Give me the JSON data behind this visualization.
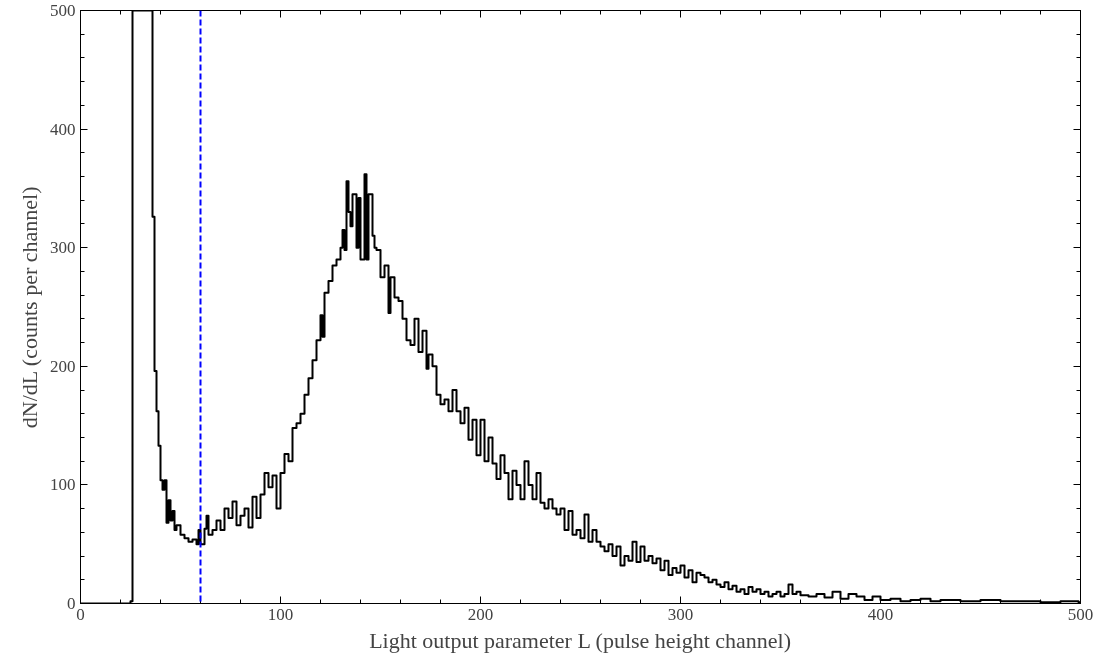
{
  "chart_data": {
    "type": "step",
    "xlabel": "Light output parameter L (pulse height channel)",
    "ylabel": "dN/dL (counts per channel)",
    "series": [
      {
        "color": "#000000",
        "x": [
          0,
          25,
          26,
          36,
          37,
          38,
          39,
          40,
          41,
          42,
          43,
          44,
          45,
          46,
          47,
          48,
          50,
          52,
          54,
          56,
          58,
          59,
          60,
          62,
          63,
          64,
          66,
          68,
          70,
          72,
          74,
          76,
          78,
          80,
          82,
          84,
          86,
          88,
          90,
          92,
          94,
          96,
          98,
          100,
          102,
          104,
          106,
          108,
          110,
          112,
          114,
          116,
          118,
          120,
          121,
          122,
          124,
          126,
          128,
          130,
          131,
          132,
          133,
          134,
          135,
          136,
          138,
          139,
          140,
          142,
          143,
          144,
          146,
          147,
          148,
          150,
          152,
          154,
          155,
          157,
          159,
          161,
          163,
          165,
          167,
          169,
          171,
          173,
          174,
          176,
          178,
          180,
          182,
          184,
          186,
          188,
          190,
          192,
          194,
          196,
          198,
          200,
          202,
          204,
          206,
          208,
          210,
          212,
          214,
          216,
          218,
          220,
          222,
          224,
          226,
          228,
          230,
          232,
          234,
          236,
          238,
          240,
          242,
          244,
          246,
          248,
          250,
          252,
          254,
          256,
          258,
          260,
          262,
          264,
          266,
          268,
          270,
          272,
          274,
          276,
          278,
          280,
          282,
          284,
          286,
          288,
          290,
          292,
          294,
          296,
          298,
          300,
          302,
          304,
          306,
          308,
          310,
          312,
          314,
          316,
          318,
          320,
          322,
          324,
          326,
          328,
          330,
          332,
          334,
          336,
          338,
          340,
          342,
          344,
          346,
          348,
          350,
          352,
          354,
          356,
          358,
          360,
          364,
          368,
          372,
          376,
          380,
          384,
          388,
          392,
          396,
          400,
          405,
          410,
          415,
          420,
          425,
          430,
          440,
          450,
          460,
          470,
          480,
          490,
          499,
          500
        ],
        "values": [
          0,
          2,
          500,
          326,
          196,
          162,
          133,
          104,
          96,
          104,
          68,
          87,
          70,
          78,
          62,
          66,
          58,
          55,
          52,
          54,
          50,
          62,
          50,
          63,
          74,
          58,
          62,
          70,
          62,
          80,
          72,
          86,
          66,
          74,
          80,
          64,
          90,
          72,
          92,
          110,
          98,
          108,
          80,
          110,
          126,
          120,
          148,
          152,
          160,
          176,
          190,
          205,
          222,
          243,
          225,
          262,
          272,
          285,
          290,
          300,
          315,
          298,
          356,
          330,
          318,
          345,
          300,
          342,
          290,
          362,
          290,
          345,
          310,
          300,
          298,
          275,
          285,
          245,
          275,
          258,
          255,
          240,
          222,
          218,
          240,
          212,
          230,
          198,
          210,
          200,
          176,
          168,
          172,
          162,
          180,
          162,
          152,
          165,
          138,
          155,
          125,
          155,
          120,
          140,
          118,
          105,
          125,
          110,
          88,
          112,
          100,
          88,
          120,
          100,
          88,
          110,
          85,
          80,
          88,
          80,
          75,
          80,
          62,
          78,
          58,
          62,
          55,
          75,
          52,
          62,
          52,
          48,
          44,
          50,
          40,
          48,
          32,
          40,
          36,
          52,
          35,
          48,
          36,
          40,
          34,
          38,
          28,
          36,
          24,
          30,
          26,
          32,
          22,
          28,
          18,
          26,
          24,
          22,
          18,
          20,
          16,
          14,
          18,
          12,
          15,
          10,
          12,
          8,
          14,
          10,
          12,
          8,
          10,
          6,
          8,
          10,
          6,
          8,
          16,
          8,
          10,
          7,
          6,
          8,
          5,
          10,
          4,
          8,
          6,
          3,
          6,
          3,
          4,
          2,
          3,
          4,
          2,
          3,
          2,
          3,
          2,
          2,
          1,
          2,
          1,
          1
        ]
      }
    ],
    "xlim": [
      0,
      500
    ],
    "ylim": [
      0,
      500
    ],
    "xticks": [
      0,
      100,
      200,
      300,
      400,
      500
    ],
    "yticks": [
      0,
      100,
      200,
      300,
      400,
      500
    ],
    "grid": false,
    "ref_lines": [
      {
        "axis": "x",
        "value": 60,
        "color": "#0000ff",
        "line_style": "dashed"
      }
    ]
  }
}
